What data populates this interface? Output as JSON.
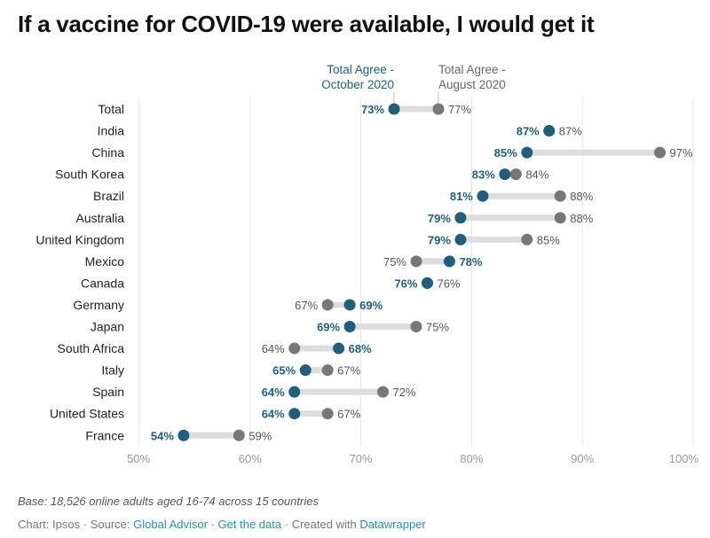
{
  "title": "If a vaccine for COVID-19 were available, I would get it",
  "footer": {
    "base": "Base: 18,526 online adults aged 16-74 across 15 countries",
    "chart_by": "Chart: Ipsos",
    "source_label": "Source:",
    "source_link": "Global Advisor",
    "get_data": "Get the data",
    "created_with": "Created with",
    "datawrapper": "Datawrapper",
    "separator": "·"
  },
  "colors": {
    "october": "#1f5f7a",
    "august": "#777777",
    "connector": "#dddddd",
    "grid": "#e6e6e6",
    "link": "#2a8fa8"
  },
  "chart_data": {
    "type": "dot-range",
    "xlim": [
      50,
      100
    ],
    "x_ticks": [
      50,
      60,
      70,
      80,
      90,
      100
    ],
    "x_tick_labels": [
      "50%",
      "60%",
      "70%",
      "80%",
      "90%",
      "100%"
    ],
    "legend": {
      "october": [
        "Total Agree -",
        "October 2020"
      ],
      "august": [
        "Total Agree -",
        "August 2020"
      ]
    },
    "categories": [
      "Total",
      "India",
      "China",
      "South Korea",
      "Brazil",
      "Australia",
      "United Kingdom",
      "Mexico",
      "Canada",
      "Germany",
      "Japan",
      "South Africa",
      "Italy",
      "Spain",
      "United States",
      "France"
    ],
    "series": [
      {
        "name": "Total Agree - October 2020",
        "values": [
          73,
          87,
          85,
          83,
          81,
          79,
          79,
          78,
          76,
          69,
          69,
          68,
          65,
          64,
          64,
          54
        ]
      },
      {
        "name": "Total Agree - August 2020",
        "values": [
          77,
          87,
          97,
          84,
          88,
          88,
          85,
          75,
          76,
          67,
          75,
          64,
          67,
          72,
          67,
          59
        ]
      }
    ]
  }
}
